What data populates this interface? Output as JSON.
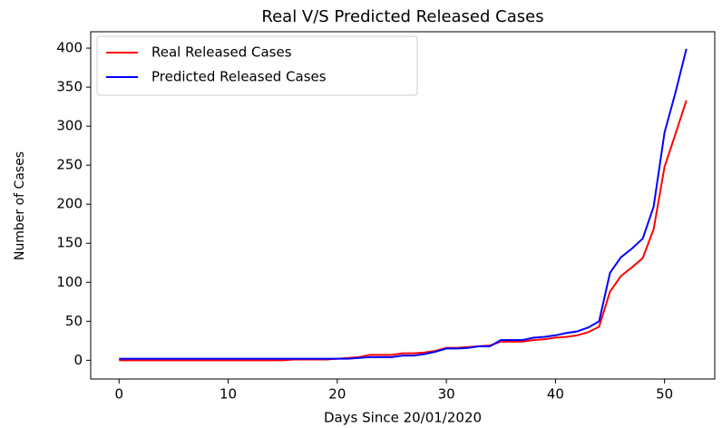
{
  "chart_data": {
    "type": "line",
    "title": "Real V/S Predicted Released Cases",
    "xlabel": "Days Since 20/01/2020",
    "ylabel": "Number of Cases",
    "x": [
      0,
      1,
      2,
      3,
      4,
      5,
      6,
      7,
      8,
      9,
      10,
      11,
      12,
      13,
      14,
      15,
      16,
      17,
      18,
      19,
      20,
      21,
      22,
      23,
      24,
      25,
      26,
      27,
      28,
      29,
      30,
      31,
      32,
      33,
      34,
      35,
      36,
      37,
      38,
      39,
      40,
      41,
      42,
      43,
      44,
      45,
      46,
      47,
      48,
      49,
      50,
      51,
      52
    ],
    "series": [
      {
        "name": "Real Released Cases",
        "color": "#ff0000",
        "values": [
          0,
          0,
          0,
          0,
          0,
          0,
          0,
          0,
          0,
          0,
          0,
          0,
          0,
          0,
          0,
          0,
          1,
          1,
          1,
          1,
          2,
          3,
          4,
          7,
          7,
          7,
          9,
          9,
          10,
          12,
          16,
          16,
          17,
          18,
          19,
          24,
          24,
          24,
          26,
          27,
          29,
          30,
          32,
          36,
          43,
          88,
          108,
          119,
          131,
          168,
          248,
          290,
          333
        ]
      },
      {
        "name": "Predicted Released Cases",
        "color": "#0000ff",
        "values": [
          2,
          2,
          2,
          2,
          2,
          2,
          2,
          2,
          2,
          2,
          2,
          2,
          2,
          2,
          2,
          2,
          2,
          2,
          2,
          2,
          2,
          2,
          3,
          4,
          4,
          4,
          6,
          6,
          8,
          11,
          15,
          15,
          16,
          18,
          18,
          26,
          26,
          26,
          29,
          30,
          32,
          35,
          37,
          42,
          50,
          112,
          132,
          143,
          156,
          197,
          292,
          343,
          399
        ]
      }
    ],
    "xlim": [
      -2.6,
      54.6
    ],
    "ylim": [
      -24,
      421
    ],
    "xticks": [
      0,
      10,
      20,
      30,
      40,
      50
    ],
    "yticks": [
      0,
      50,
      100,
      150,
      200,
      250,
      300,
      350,
      400
    ],
    "legend": "upper left"
  }
}
